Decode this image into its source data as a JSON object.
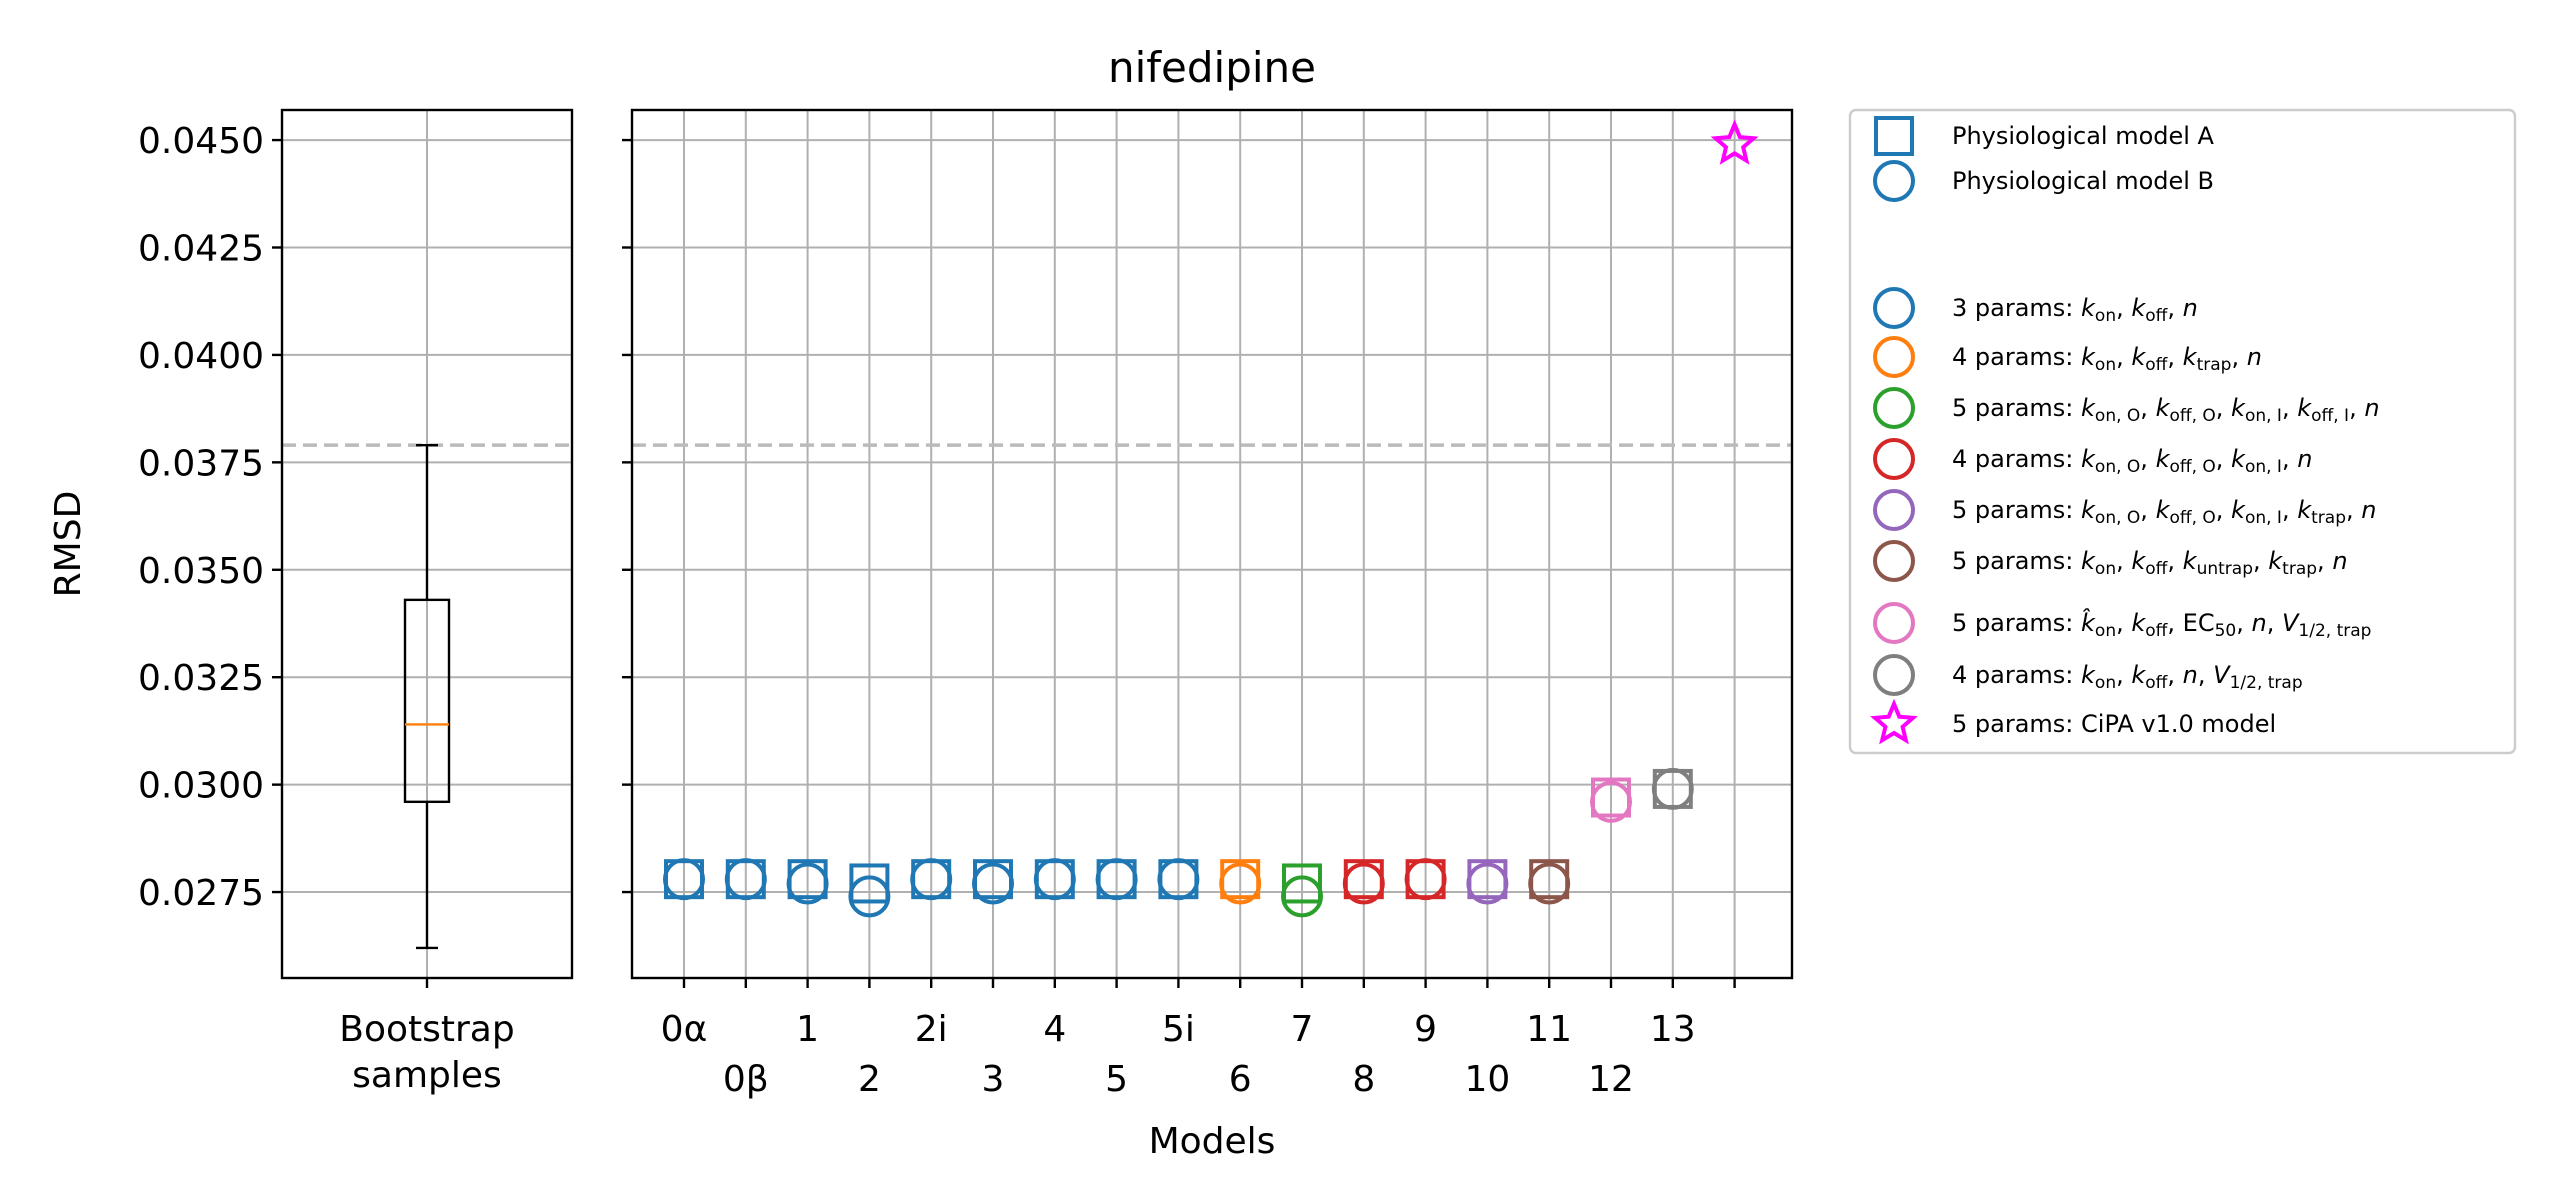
{
  "title": "nifedipine",
  "ylabel": "RMSD",
  "xlabel": "Models",
  "colors": {
    "blue": "#1f77b4",
    "orange": "#ff7f0e",
    "green": "#2ca02c",
    "red": "#d62728",
    "purple": "#9467bd",
    "brown": "#8c564b",
    "pink": "#e377c2",
    "gray": "#7f7f7f",
    "magenta": "#ff00ff",
    "median": "#ff7f0e",
    "reference": "#bbbbbb",
    "grid": "#b0b0b0"
  },
  "chart_data": [
    {
      "type": "box",
      "category": "Bootstrap samples",
      "category_lines": [
        "Bootstrap",
        "samples"
      ],
      "ylabel": "RMSD",
      "ylim": [
        0.0255,
        0.0457
      ],
      "yticks": [
        "0.0275",
        "0.0300",
        "0.0325",
        "0.0350",
        "0.0375",
        "0.0400",
        "0.0425",
        "0.0450"
      ],
      "ytick_values": [
        0.0275,
        0.03,
        0.0325,
        0.035,
        0.0375,
        0.04,
        0.0425,
        0.045
      ],
      "stats": {
        "whisker_low": 0.0262,
        "q1": 0.0296,
        "median": 0.0314,
        "q3": 0.0343,
        "whisker_high": 0.0379
      },
      "reference_line": 0.0379,
      "grid": true
    },
    {
      "type": "scatter",
      "title": "nifedipine",
      "xlabel": "Models",
      "ylim": [
        0.0255,
        0.0457
      ],
      "reference_line": 0.0379,
      "grid": true,
      "categories": [
        "0α",
        "0β",
        "1",
        "2",
        "2i",
        "3",
        "4",
        "5",
        "5i",
        "6",
        "7",
        "8",
        "9",
        "10",
        "11",
        "12",
        "13",
        ""
      ],
      "series": [
        {
          "name": "Physiological model A",
          "marker": "square",
          "color_key": "blue",
          "values": [
            0.0278,
            0.0278,
            0.0278,
            0.0277,
            0.0278,
            0.0278,
            0.0278,
            0.0278,
            0.0278,
            0.0278,
            0.0277,
            0.0278,
            0.0278,
            0.0278,
            0.0278,
            0.0297,
            0.0299,
            null
          ],
          "colors": [
            "blue",
            "blue",
            "blue",
            "blue",
            "blue",
            "blue",
            "blue",
            "blue",
            "blue",
            "orange",
            "green",
            "red",
            "red",
            "purple",
            "brown",
            "pink",
            "gray",
            null
          ]
        },
        {
          "name": "Physiological model B",
          "marker": "circle",
          "color_key": "blue",
          "values": [
            0.0278,
            0.0278,
            0.0277,
            0.0274,
            0.0278,
            0.0277,
            0.0278,
            0.0278,
            0.0278,
            0.0277,
            0.0274,
            0.0277,
            0.0278,
            0.0277,
            0.0277,
            0.0296,
            0.0299,
            null
          ],
          "colors": [
            "blue",
            "blue",
            "blue",
            "blue",
            "blue",
            "blue",
            "blue",
            "blue",
            "blue",
            "orange",
            "green",
            "red",
            "red",
            "purple",
            "brown",
            "pink",
            "gray",
            null
          ]
        },
        {
          "name": "5 params: CiPA v1.0 model",
          "marker": "star",
          "color_key": "magenta",
          "values": [
            null,
            null,
            null,
            null,
            null,
            null,
            null,
            null,
            null,
            null,
            null,
            null,
            null,
            null,
            null,
            null,
            null,
            0.0449
          ]
        }
      ]
    }
  ],
  "legend": {
    "placement": "outside right, top",
    "entries": [
      {
        "marker": "square",
        "color": "blue",
        "parts": [
          [
            "n",
            "Physiological model A"
          ]
        ]
      },
      {
        "marker": "circle",
        "color": "blue",
        "parts": [
          [
            "n",
            "Physiological model B"
          ]
        ]
      },
      {
        "marker": "none",
        "color": "",
        "parts": []
      },
      {
        "marker": "circle",
        "color": "blue",
        "parts": [
          [
            "n",
            "3 params: "
          ],
          [
            "i",
            "k"
          ],
          [
            "s",
            "on"
          ],
          [
            "n",
            ", "
          ],
          [
            "i",
            "k"
          ],
          [
            "s",
            "off"
          ],
          [
            "n",
            ", "
          ],
          [
            "i",
            "n"
          ]
        ]
      },
      {
        "marker": "circle",
        "color": "orange",
        "parts": [
          [
            "n",
            "4 params: "
          ],
          [
            "i",
            "k"
          ],
          [
            "s",
            "on"
          ],
          [
            "n",
            ", "
          ],
          [
            "i",
            "k"
          ],
          [
            "s",
            "off"
          ],
          [
            "n",
            ", "
          ],
          [
            "i",
            "k"
          ],
          [
            "s",
            "trap"
          ],
          [
            "n",
            ", "
          ],
          [
            "i",
            "n"
          ]
        ]
      },
      {
        "marker": "circle",
        "color": "green",
        "parts": [
          [
            "n",
            "5 params: "
          ],
          [
            "i",
            "k"
          ],
          [
            "s",
            "on, O"
          ],
          [
            "n",
            ", "
          ],
          [
            "i",
            "k"
          ],
          [
            "s",
            "off, O"
          ],
          [
            "n",
            ", "
          ],
          [
            "i",
            "k"
          ],
          [
            "s",
            "on, I"
          ],
          [
            "n",
            ", "
          ],
          [
            "i",
            "k"
          ],
          [
            "s",
            "off, I"
          ],
          [
            "n",
            ", "
          ],
          [
            "i",
            "n"
          ]
        ]
      },
      {
        "marker": "circle",
        "color": "red",
        "parts": [
          [
            "n",
            "4 params: "
          ],
          [
            "i",
            "k"
          ],
          [
            "s",
            "on, O"
          ],
          [
            "n",
            ", "
          ],
          [
            "i",
            "k"
          ],
          [
            "s",
            "off, O"
          ],
          [
            "n",
            ", "
          ],
          [
            "i",
            "k"
          ],
          [
            "s",
            "on, I"
          ],
          [
            "n",
            ", "
          ],
          [
            "i",
            "n"
          ]
        ]
      },
      {
        "marker": "circle",
        "color": "purple",
        "parts": [
          [
            "n",
            "5 params: "
          ],
          [
            "i",
            "k"
          ],
          [
            "s",
            "on, O"
          ],
          [
            "n",
            ", "
          ],
          [
            "i",
            "k"
          ],
          [
            "s",
            "off, O"
          ],
          [
            "n",
            ", "
          ],
          [
            "i",
            "k"
          ],
          [
            "s",
            "on, I"
          ],
          [
            "n",
            ", "
          ],
          [
            "i",
            "k"
          ],
          [
            "s",
            "trap"
          ],
          [
            "n",
            ", "
          ],
          [
            "i",
            "n"
          ]
        ]
      },
      {
        "marker": "circle",
        "color": "brown",
        "parts": [
          [
            "n",
            "5 params: "
          ],
          [
            "i",
            "k"
          ],
          [
            "s",
            "on"
          ],
          [
            "n",
            ", "
          ],
          [
            "i",
            "k"
          ],
          [
            "s",
            "off"
          ],
          [
            "n",
            ", "
          ],
          [
            "i",
            "k"
          ],
          [
            "s",
            "untrap"
          ],
          [
            "n",
            ", "
          ],
          [
            "i",
            "k"
          ],
          [
            "s",
            "trap"
          ],
          [
            "n",
            ", "
          ],
          [
            "i",
            "n"
          ]
        ]
      },
      {
        "marker": "circle",
        "color": "pink",
        "parts": [
          [
            "n",
            "5 params: "
          ],
          [
            "i",
            "k̂"
          ],
          [
            "s",
            "on"
          ],
          [
            "n",
            ", "
          ],
          [
            "i",
            "k"
          ],
          [
            "s",
            "off"
          ],
          [
            "n",
            ", EC"
          ],
          [
            "s",
            "50"
          ],
          [
            "n",
            ", "
          ],
          [
            "i",
            "n"
          ],
          [
            "n",
            ", "
          ],
          [
            "i",
            "V"
          ],
          [
            "s",
            "1/2, trap"
          ]
        ]
      },
      {
        "marker": "circle",
        "color": "gray",
        "parts": [
          [
            "n",
            "4 params: "
          ],
          [
            "i",
            "k"
          ],
          [
            "s",
            "on"
          ],
          [
            "n",
            ", "
          ],
          [
            "i",
            "k"
          ],
          [
            "s",
            "off"
          ],
          [
            "n",
            ", "
          ],
          [
            "i",
            "n"
          ],
          [
            "n",
            ", "
          ],
          [
            "i",
            "V"
          ],
          [
            "s",
            "1/2, trap"
          ]
        ]
      },
      {
        "marker": "star",
        "color": "magenta",
        "parts": [
          [
            "n",
            "5 params: CiPA v1.0 model"
          ]
        ]
      }
    ]
  }
}
